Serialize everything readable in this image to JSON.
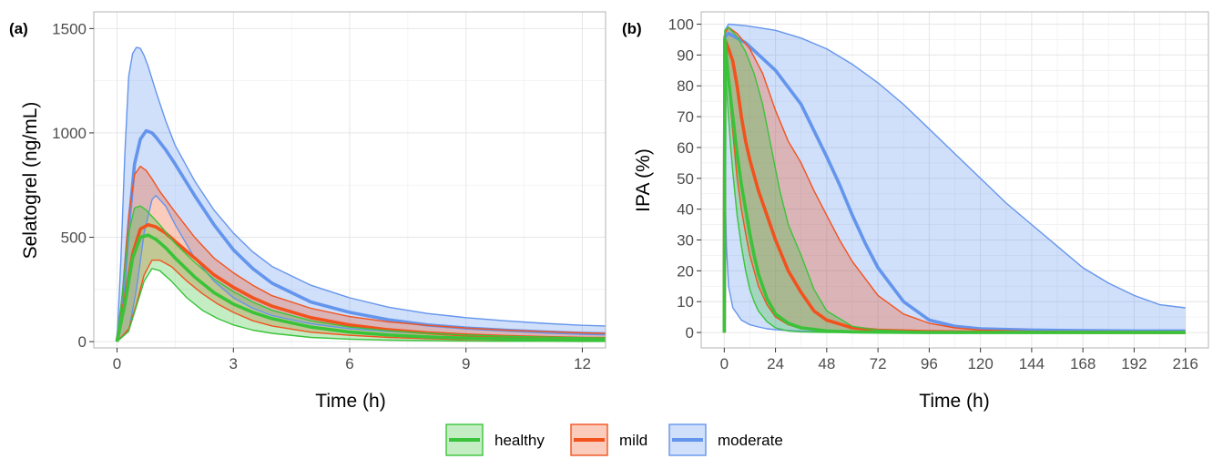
{
  "colors": {
    "healthy": "#3ac33a",
    "mild": "#f2521e",
    "moderate": "#6495ed",
    "grid": "#e6e6e6",
    "panel_border": "#b3b3b3"
  },
  "legend": {
    "placement": "bottom",
    "items": [
      {
        "key": "healthy",
        "label": "healthy"
      },
      {
        "key": "mild",
        "label": "mild"
      },
      {
        "key": "moderate",
        "label": "moderate"
      }
    ]
  },
  "chart_data": [
    {
      "type": "line",
      "panel_label": "(a)",
      "xlabel": "Time (h)",
      "ylabel": "Selatogrel (ng/mL)",
      "xlim": [
        -0.6,
        12.6
      ],
      "ylim": [
        -30,
        1580
      ],
      "xticks": [
        0,
        3,
        6,
        9,
        12
      ],
      "yticks": [
        0,
        500,
        1000,
        1500
      ],
      "grid": true,
      "series": [
        {
          "group": "moderate",
          "role": "upper",
          "x": [
            0,
            0.1,
            0.2,
            0.3,
            0.4,
            0.5,
            0.6,
            0.7,
            0.8,
            1,
            1.25,
            1.5,
            2,
            2.5,
            3,
            3.5,
            4,
            5,
            6,
            7,
            8,
            9,
            10,
            11,
            12,
            12.6
          ],
          "y": [
            0,
            400,
            900,
            1270,
            1380,
            1410,
            1405,
            1370,
            1320,
            1200,
            1060,
            940,
            770,
            630,
            520,
            430,
            360,
            270,
            210,
            165,
            135,
            115,
            100,
            88,
            78,
            75
          ]
        },
        {
          "group": "moderate",
          "role": "median",
          "x": [
            0,
            0.15,
            0.3,
            0.45,
            0.6,
            0.75,
            0.9,
            1,
            1.25,
            1.5,
            2,
            2.5,
            3,
            3.5,
            4,
            5,
            6,
            7,
            8,
            9,
            10,
            11,
            12,
            12.6
          ],
          "y": [
            0,
            200,
            550,
            850,
            970,
            1010,
            1000,
            980,
            920,
            850,
            700,
            560,
            440,
            350,
            280,
            190,
            140,
            105,
            80,
            65,
            55,
            47,
            40,
            37
          ]
        },
        {
          "group": "moderate",
          "role": "lower",
          "x": [
            0,
            0.3,
            0.5,
            0.7,
            0.9,
            1,
            1.25,
            1.5,
            2,
            2.5,
            3,
            3.5,
            4,
            5,
            6,
            7,
            8,
            9,
            10,
            11,
            12,
            12.6
          ],
          "y": [
            0,
            50,
            250,
            520,
            680,
            700,
            650,
            560,
            400,
            290,
            210,
            160,
            125,
            85,
            62,
            48,
            38,
            30,
            25,
            21,
            18,
            17
          ]
        },
        {
          "group": "mild",
          "role": "upper",
          "x": [
            0,
            0.15,
            0.3,
            0.45,
            0.6,
            0.75,
            0.9,
            1.1,
            1.5,
            2,
            2.5,
            3,
            3.5,
            4,
            5,
            6,
            7,
            8,
            9,
            10,
            11,
            12,
            12.6
          ],
          "y": [
            0,
            250,
            600,
            800,
            840,
            820,
            780,
            720,
            620,
            500,
            400,
            330,
            270,
            220,
            160,
            120,
            95,
            78,
            65,
            55,
            48,
            42,
            40
          ]
        },
        {
          "group": "mild",
          "role": "median",
          "x": [
            0,
            0.2,
            0.4,
            0.6,
            0.8,
            1,
            1.25,
            1.5,
            2,
            2.5,
            3,
            3.5,
            4,
            5,
            6,
            7,
            8,
            9,
            10,
            11,
            12,
            12.6
          ],
          "y": [
            0,
            200,
            420,
            540,
            560,
            550,
            520,
            480,
            400,
            320,
            260,
            210,
            170,
            115,
            80,
            57,
            42,
            32,
            25,
            20,
            16,
            15
          ]
        },
        {
          "group": "mild",
          "role": "lower",
          "x": [
            0,
            0.3,
            0.5,
            0.7,
            0.9,
            1.1,
            1.4,
            1.8,
            2.2,
            2.6,
            3,
            3.5,
            4,
            5,
            6,
            7,
            8,
            9,
            10,
            11,
            12,
            12.6
          ],
          "y": [
            0,
            60,
            180,
            320,
            390,
            390,
            360,
            290,
            230,
            180,
            140,
            100,
            75,
            45,
            30,
            20,
            14,
            10,
            8,
            6,
            5,
            5
          ]
        },
        {
          "group": "healthy",
          "role": "upper",
          "x": [
            0,
            0.15,
            0.3,
            0.45,
            0.6,
            0.75,
            0.9,
            1.1,
            1.5,
            2,
            2.5,
            3,
            3.5,
            4,
            5,
            6,
            7,
            8,
            9,
            10,
            11,
            12,
            12.6
          ],
          "y": [
            0,
            250,
            520,
            640,
            650,
            630,
            600,
            560,
            470,
            380,
            300,
            240,
            190,
            150,
            100,
            70,
            52,
            40,
            32,
            26,
            22,
            19,
            18
          ]
        },
        {
          "group": "healthy",
          "role": "median",
          "x": [
            0,
            0.2,
            0.4,
            0.6,
            0.8,
            1,
            1.25,
            1.5,
            2,
            2.5,
            3,
            3.5,
            4,
            5,
            6,
            7,
            8,
            9,
            10,
            11,
            12,
            12.6
          ],
          "y": [
            0,
            180,
            400,
            500,
            510,
            490,
            450,
            400,
            310,
            235,
            180,
            140,
            110,
            70,
            46,
            32,
            23,
            17,
            13,
            10,
            8,
            7
          ]
        },
        {
          "group": "healthy",
          "role": "lower",
          "x": [
            0,
            0.3,
            0.5,
            0.7,
            0.9,
            1.1,
            1.4,
            1.8,
            2.2,
            2.6,
            3,
            3.5,
            4,
            5,
            6,
            7,
            8,
            9,
            10,
            11,
            12,
            12.6
          ],
          "y": [
            0,
            50,
            170,
            290,
            350,
            340,
            290,
            210,
            150,
            110,
            80,
            55,
            40,
            20,
            12,
            7,
            5,
            3,
            2,
            2,
            1,
            1
          ]
        }
      ]
    },
    {
      "type": "line",
      "panel_label": "(b)",
      "xlabel": "Time (h)",
      "ylabel": "IPA (%)",
      "xlim": [
        -10.8,
        226.8
      ],
      "ylim": [
        -5,
        104
      ],
      "xticks": [
        0,
        24,
        48,
        72,
        96,
        120,
        144,
        168,
        192,
        216
      ],
      "yticks": [
        0,
        10,
        20,
        30,
        40,
        50,
        60,
        70,
        80,
        90,
        100
      ],
      "grid": true,
      "series": [
        {
          "group": "moderate",
          "role": "upper",
          "x": [
            0,
            0.3,
            2,
            10,
            24,
            36,
            48,
            60,
            72,
            84,
            96,
            108,
            120,
            132,
            144,
            156,
            168,
            180,
            192,
            204,
            216
          ],
          "y": [
            0,
            98,
            100,
            99.5,
            98,
            95.5,
            92,
            87,
            81,
            74,
            66,
            58,
            50,
            42,
            35,
            28,
            21,
            16,
            12,
            9,
            8
          ]
        },
        {
          "group": "moderate",
          "role": "median",
          "x": [
            0,
            0.3,
            2,
            10,
            24,
            36,
            48,
            54,
            60,
            66,
            72,
            84,
            96,
            108,
            120,
            144,
            168,
            192,
            216
          ],
          "y": [
            0,
            96,
            97,
            94,
            85,
            74,
            57,
            48,
            38,
            29,
            21,
            10,
            4,
            2,
            1.2,
            0.8,
            0.6,
            0.5,
            0.5
          ]
        },
        {
          "group": "moderate",
          "role": "lower",
          "x": [
            0,
            0.3,
            1,
            2,
            4,
            8,
            12,
            16,
            20,
            24,
            30,
            36,
            48,
            60,
            72,
            96,
            120,
            168,
            216
          ],
          "y": [
            0,
            50,
            28,
            15,
            8,
            4,
            2.5,
            1.8,
            1.2,
            0.9,
            0.6,
            0.4,
            0.2,
            0.1,
            0.1,
            0,
            0,
            0,
            0
          ]
        },
        {
          "group": "mild",
          "role": "upper",
          "x": [
            0,
            0.3,
            2,
            6,
            12,
            18,
            24,
            30,
            36,
            42,
            48,
            54,
            60,
            72,
            84,
            96,
            108,
            120,
            144,
            168,
            192,
            216
          ],
          "y": [
            0,
            97,
            99,
            97,
            92,
            84,
            72,
            62,
            55,
            46,
            38,
            30,
            23,
            12,
            6,
            3,
            1.5,
            0.8,
            0.4,
            0.2,
            0.1,
            0
          ]
        },
        {
          "group": "mild",
          "role": "median",
          "x": [
            0,
            0.3,
            2,
            4,
            6,
            8,
            10,
            12,
            16,
            20,
            24,
            30,
            36,
            42,
            48,
            60,
            72,
            96,
            120,
            216
          ],
          "y": [
            0,
            95,
            92,
            88,
            80,
            70,
            62,
            56,
            46,
            38,
            30,
            20,
            13,
            7,
            4,
            1.5,
            0.7,
            0.3,
            0.1,
            0
          ]
        },
        {
          "group": "mild",
          "role": "lower",
          "x": [
            0,
            0.3,
            2,
            4,
            6,
            8,
            10,
            12,
            16,
            20,
            24,
            30,
            36,
            48,
            72,
            96,
            216
          ],
          "y": [
            0,
            92,
            80,
            65,
            50,
            40,
            32,
            25,
            15,
            9,
            5,
            2.5,
            1.2,
            0.4,
            0.1,
            0,
            0
          ]
        },
        {
          "group": "healthy",
          "role": "upper",
          "x": [
            0,
            0.3,
            2,
            6,
            10,
            14,
            18,
            22,
            26,
            30,
            36,
            42,
            48,
            60,
            72,
            96,
            120,
            216
          ],
          "y": [
            0,
            98,
            99,
            96,
            91,
            84,
            74,
            60,
            46,
            35,
            25,
            14,
            7,
            2,
            0.8,
            0.2,
            0.1,
            0
          ]
        },
        {
          "group": "healthy",
          "role": "median",
          "x": [
            0,
            0.3,
            2,
            4,
            6,
            8,
            10,
            12,
            14,
            16,
            20,
            24,
            30,
            36,
            48,
            60,
            72,
            96,
            216
          ],
          "y": [
            0,
            95,
            82,
            70,
            58,
            48,
            40,
            32,
            25,
            19,
            11,
            6,
            3,
            1.5,
            0.5,
            0.2,
            0.1,
            0,
            0
          ]
        },
        {
          "group": "healthy",
          "role": "lower",
          "x": [
            0,
            0.3,
            1,
            2,
            3,
            4,
            6,
            8,
            10,
            12,
            14,
            16,
            20,
            24,
            30,
            36,
            48,
            72,
            216
          ],
          "y": [
            0,
            90,
            80,
            70,
            60,
            52,
            38,
            28,
            20,
            14,
            10,
            7,
            3.5,
            1.5,
            0.5,
            0.2,
            0,
            0,
            0
          ]
        }
      ]
    }
  ]
}
